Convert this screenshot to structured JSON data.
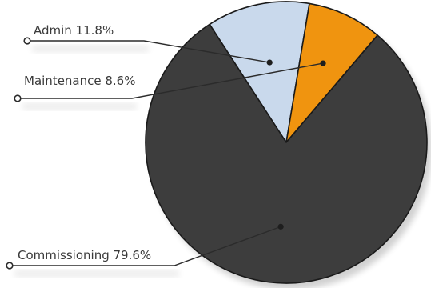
{
  "chart_data": {
    "type": "pie",
    "title": "",
    "slices": [
      {
        "label": "Admin",
        "percent_label": "11.8%",
        "value": 11.8,
        "color": "#c9d9ec"
      },
      {
        "label": "Maintenance",
        "percent_label": "8.6%",
        "value": 8.6,
        "color": "#f0940f"
      },
      {
        "label": "Commissioning",
        "percent_label": "79.6%",
        "value": 79.6,
        "color": "#3d3d3d"
      }
    ],
    "legend": "none",
    "label_style": "leader-lines"
  }
}
